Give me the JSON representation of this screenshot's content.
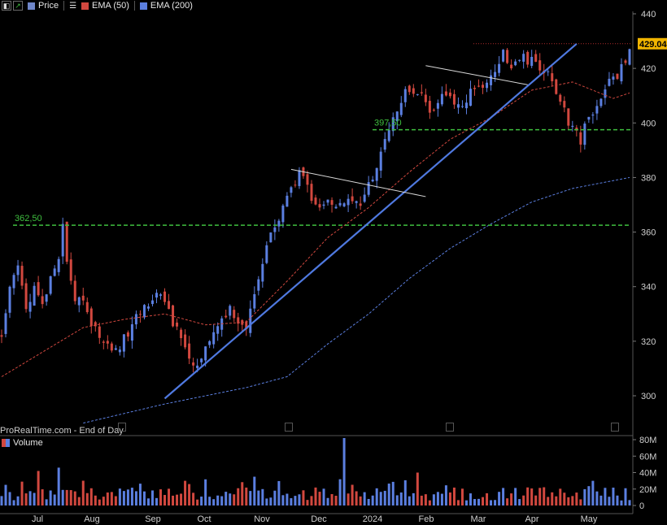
{
  "topbar": {
    "price_label": "Price",
    "ema50_label": "EMA (50)",
    "ema200_label": "EMA (200)",
    "colors": {
      "price": "#6f86c9",
      "ema50": "#d2483f",
      "ema200": "#5b7fe0"
    }
  },
  "footer": {
    "source": "ProRealTime.com - End of Day"
  },
  "volume_panel": {
    "title": "Volume"
  },
  "chart_data": [
    {
      "type": "candlestick",
      "title": "",
      "ylim": [
        288,
        444
      ],
      "y_ticks": [
        300,
        320,
        340,
        360,
        380,
        400,
        420,
        440
      ],
      "x_ticks": [
        "Jul",
        "Aug",
        "Sep",
        "Oct",
        "Nov",
        "Dec",
        "2024",
        "Feb",
        "Mar",
        "Apr",
        "May"
      ],
      "last_price": 429.04,
      "colors": {
        "up": "#5b7fe0",
        "down": "#d2483f"
      },
      "close_path": [
        [
          0,
          323
        ],
        [
          2,
          338
        ],
        [
          4,
          348
        ],
        [
          6,
          331
        ],
        [
          8,
          340
        ],
        [
          10,
          334
        ],
        [
          12,
          342
        ],
        [
          14,
          352
        ],
        [
          15,
          362
        ],
        [
          16,
          350
        ],
        [
          18,
          336
        ],
        [
          20,
          333
        ],
        [
          22,
          326
        ],
        [
          24,
          322
        ],
        [
          26,
          318
        ],
        [
          28,
          316
        ],
        [
          30,
          321
        ],
        [
          32,
          326
        ],
        [
          34,
          330
        ],
        [
          36,
          333
        ],
        [
          38,
          338
        ],
        [
          40,
          336
        ],
        [
          42,
          327
        ],
        [
          44,
          320
        ],
        [
          46,
          314
        ],
        [
          48,
          310
        ],
        [
          49,
          312
        ],
        [
          50,
          318
        ],
        [
          52,
          325
        ],
        [
          54,
          330
        ],
        [
          56,
          331
        ],
        [
          58,
          327
        ],
        [
          60,
          326
        ],
        [
          61,
          330
        ],
        [
          63,
          342
        ],
        [
          65,
          355
        ],
        [
          67,
          361
        ],
        [
          69,
          368
        ],
        [
          71,
          375
        ],
        [
          73,
          381
        ],
        [
          74,
          379
        ],
        [
          76,
          372
        ],
        [
          78,
          369
        ],
        [
          80,
          371
        ],
        [
          82,
          369
        ],
        [
          84,
          372
        ],
        [
          86,
          371
        ],
        [
          88,
          368
        ],
        [
          89,
          372
        ],
        [
          91,
          381
        ],
        [
          93,
          389
        ],
        [
          95,
          397
        ],
        [
          97,
          405
        ],
        [
          99,
          411
        ],
        [
          101,
          412
        ],
        [
          103,
          409
        ],
        [
          105,
          403
        ],
        [
          107,
          406
        ],
        [
          109,
          412
        ],
        [
          111,
          408
        ],
        [
          113,
          405
        ],
        [
          115,
          411
        ],
        [
          117,
          415
        ],
        [
          119,
          413
        ],
        [
          121,
          420
        ],
        [
          123,
          426
        ],
        [
          125,
          421
        ],
        [
          127,
          424
        ],
        [
          129,
          423
        ],
        [
          131,
          422
        ],
        [
          133,
          419
        ],
        [
          135,
          415
        ],
        [
          137,
          408
        ],
        [
          139,
          401
        ],
        [
          141,
          396
        ],
        [
          142,
          393
        ],
        [
          143,
          398
        ],
        [
          145,
          405
        ],
        [
          147,
          410
        ],
        [
          149,
          415
        ],
        [
          151,
          418
        ],
        [
          153,
          423
        ],
        [
          154,
          427
        ]
      ],
      "series": [
        {
          "name": "EMA (50)",
          "style": "dashed",
          "points": [
            [
              0,
              307
            ],
            [
              10,
              316
            ],
            [
              20,
              325
            ],
            [
              30,
              328
            ],
            [
              40,
              330
            ],
            [
              50,
              326
            ],
            [
              60,
              327
            ],
            [
              70,
              342
            ],
            [
              80,
              358
            ],
            [
              90,
              369
            ],
            [
              100,
              382
            ],
            [
              110,
              394
            ],
            [
              120,
              402
            ],
            [
              130,
              412
            ],
            [
              140,
              415
            ],
            [
              150,
              409
            ],
            [
              154,
              411
            ]
          ]
        },
        {
          "name": "EMA (200)",
          "style": "dashed",
          "points": [
            [
              20,
              290
            ],
            [
              40,
              297
            ],
            [
              60,
              303
            ],
            [
              70,
              307
            ],
            [
              80,
              319
            ],
            [
              90,
              330
            ],
            [
              100,
              343
            ],
            [
              110,
              354
            ],
            [
              120,
              363
            ],
            [
              130,
              371
            ],
            [
              140,
              376
            ],
            [
              154,
              380
            ]
          ]
        }
      ],
      "levels": [
        {
          "label": "397,50",
          "value": 397.5,
          "color": "#3fbf3f"
        },
        {
          "label": "362,50",
          "value": 362.5,
          "color": "#3fbf3f"
        },
        {
          "label": "",
          "value": 429.04,
          "color": "#b02a2a"
        }
      ],
      "trendlines": [
        {
          "name": "uptrend",
          "color": "#4f79e0",
          "points": [
            [
              40,
              299
            ],
            [
              141,
              429
            ]
          ]
        },
        {
          "name": "resistance-nov",
          "color": "#d9d9d9",
          "points": [
            [
              71,
              383
            ],
            [
              104,
              373
            ]
          ]
        },
        {
          "name": "resistance-feb",
          "color": "#d9d9d9",
          "points": [
            [
              104,
              421
            ],
            [
              129,
              414
            ]
          ]
        }
      ]
    },
    {
      "type": "bar",
      "title": "Volume",
      "ylim": [
        0,
        85
      ],
      "y_ticks": [
        "0",
        "20M",
        "40M",
        "60M",
        "80M"
      ],
      "y_tick_values": [
        0,
        20,
        40,
        60,
        80
      ],
      "spikes": [
        {
          "index": 9,
          "value": 42
        },
        {
          "index": 14,
          "value": 46
        },
        {
          "index": 45,
          "value": 30
        },
        {
          "index": 62,
          "value": 35
        },
        {
          "index": 84,
          "value": 82
        },
        {
          "index": 102,
          "value": 40
        },
        {
          "index": 145,
          "value": 30
        }
      ]
    }
  ]
}
